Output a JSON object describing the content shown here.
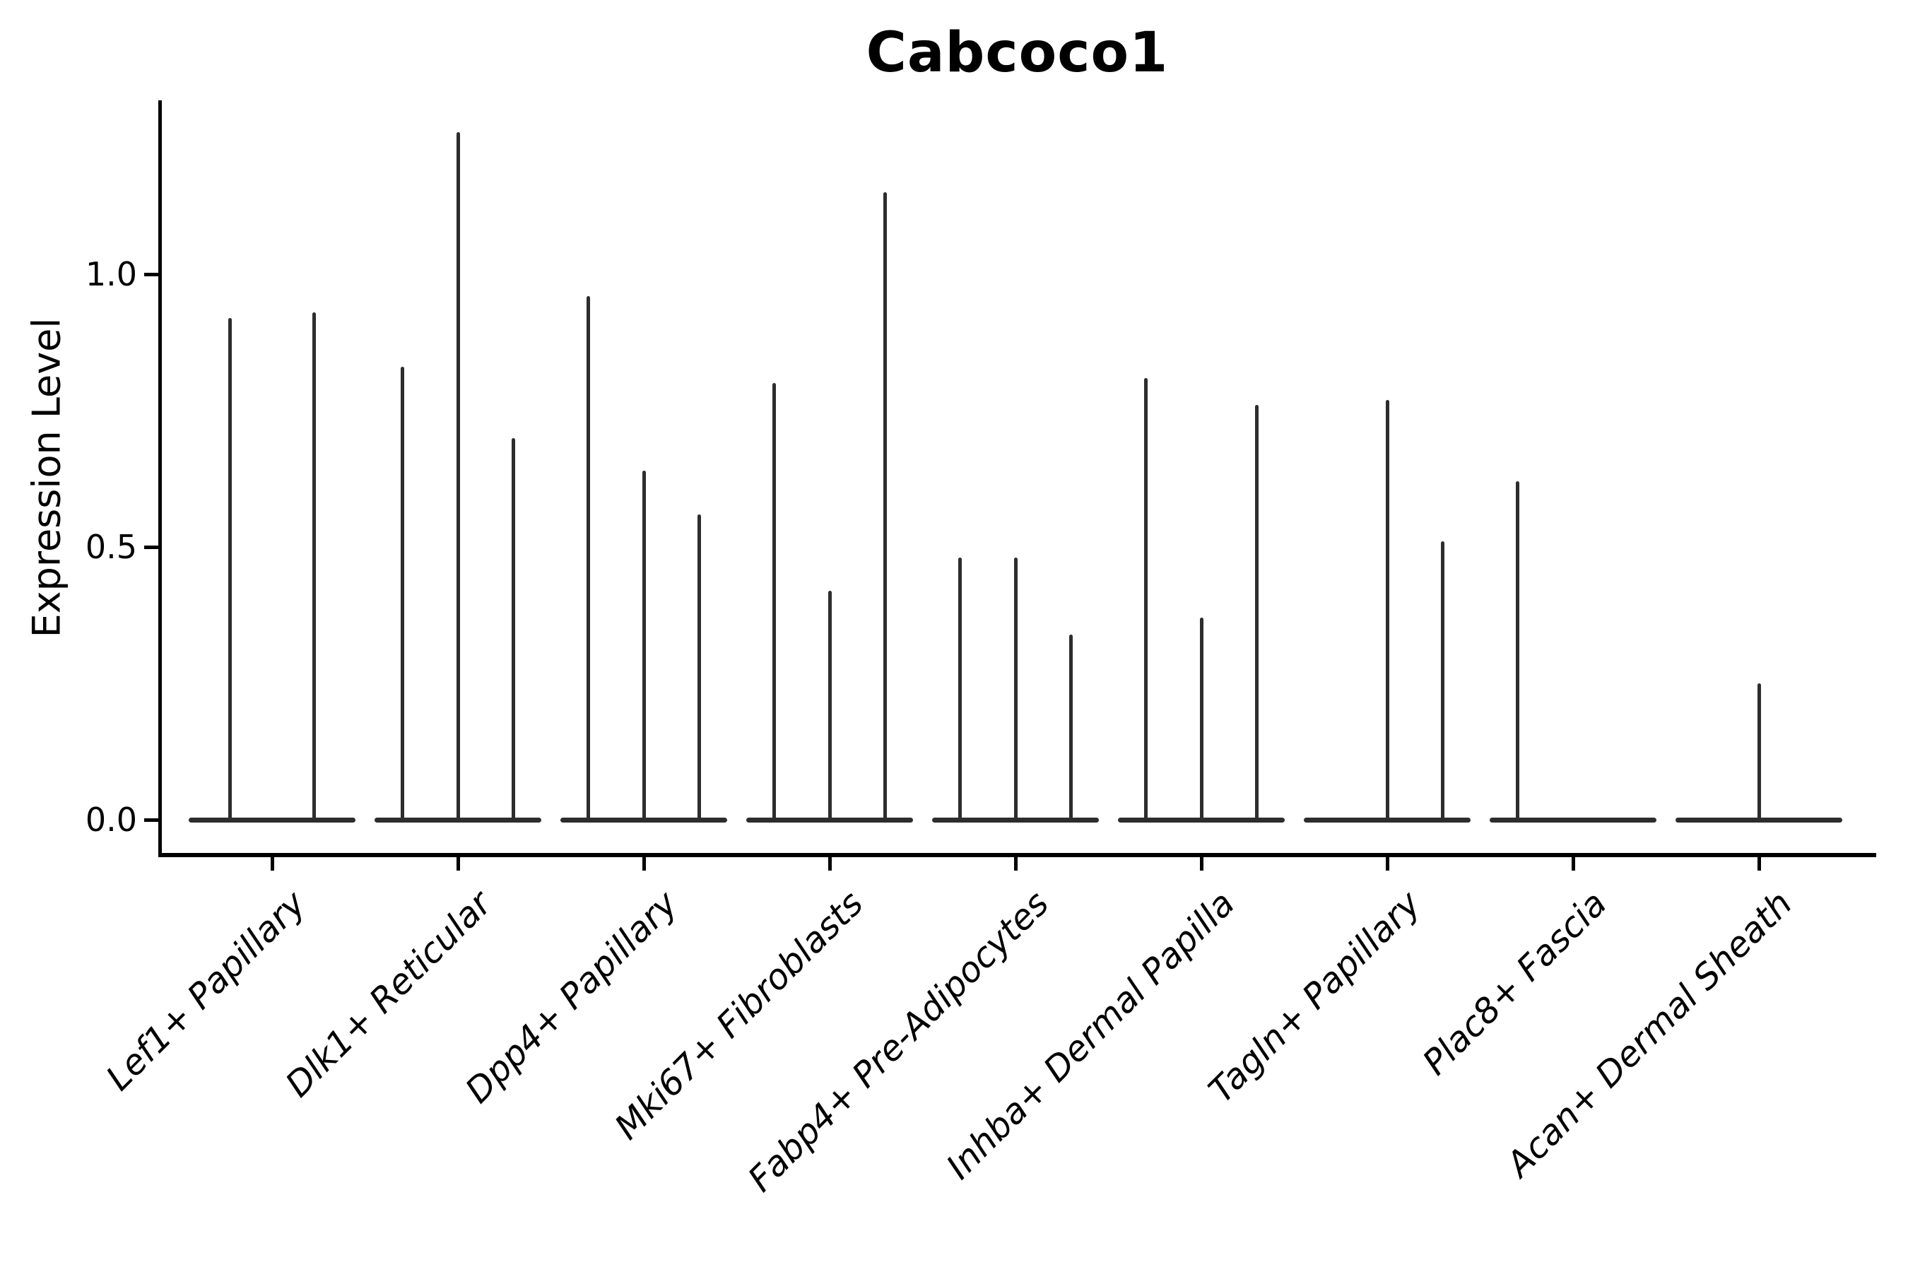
{
  "figure": {
    "title": "Cabcoco1",
    "background": "#ffffff"
  },
  "chart_data": {
    "type": "violin",
    "title": "Cabcoco1",
    "xlabel": "",
    "ylabel": "Expression Level",
    "ytick_labels": [
      "0.0",
      "0.5",
      "1.0"
    ],
    "ytick_values": [
      0.0,
      0.5,
      1.0
    ],
    "ylim": [
      -0.063,
      1.32
    ],
    "grid": false,
    "legend": "none",
    "violin_color": "#2d2d2d",
    "axis_color": "#000000",
    "x_label_style": "italic, rotated 45deg",
    "categories": [
      {
        "label": "Lef1+ Papillary",
        "violins": [
          {
            "offset": -0.225,
            "max": 0.92
          },
          {
            "offset": 0.225,
            "max": 0.93
          }
        ]
      },
      {
        "label": "Dlk1+ Reticular",
        "violins": [
          {
            "offset": -0.3,
            "max": 0.83
          },
          {
            "offset": 0,
            "max": 1.26
          },
          {
            "offset": 0.3,
            "max": 0.7
          }
        ]
      },
      {
        "label": "Dpp4+ Papillary",
        "violins": [
          {
            "offset": -0.3,
            "max": 0.96
          },
          {
            "offset": 0,
            "max": 0.64
          },
          {
            "offset": 0.3,
            "max": 0.56
          }
        ]
      },
      {
        "label": "Mki67+ Fibroblasts",
        "violins": [
          {
            "offset": -0.3,
            "max": 0.8
          },
          {
            "offset": 0,
            "max": 0.42
          },
          {
            "offset": 0.3,
            "max": 1.15
          }
        ]
      },
      {
        "label": "Fabp4+ Pre-Adipocytes",
        "violins": [
          {
            "offset": -0.3,
            "max": 0.48
          },
          {
            "offset": 0,
            "max": 0.48
          },
          {
            "offset": 0.3,
            "max": 0.34
          }
        ]
      },
      {
        "label": "Inhba+ Dermal Papilla",
        "violins": [
          {
            "offset": -0.3,
            "max": 0.81
          },
          {
            "offset": 0,
            "max": 0.37
          },
          {
            "offset": 0.3,
            "max": 0.76
          }
        ]
      },
      {
        "label": "Tagln+ Papillary",
        "violins": [
          {
            "offset": -0.3,
            "max": 0.0
          },
          {
            "offset": 0,
            "max": 0.77
          },
          {
            "offset": 0.3,
            "max": 0.51
          }
        ]
      },
      {
        "label": "Plac8+ Fascia",
        "violins": [
          {
            "offset": -0.3,
            "max": 0.62
          },
          {
            "offset": 0,
            "max": 0.0
          },
          {
            "offset": 0.3,
            "max": 0.0
          }
        ]
      },
      {
        "label": "Acan+ Dermal Sheath",
        "violins": [
          {
            "offset": -0.3,
            "max": 0.0
          },
          {
            "offset": 0,
            "max": 0.25
          },
          {
            "offset": 0.3,
            "max": 0.0
          }
        ]
      }
    ]
  }
}
